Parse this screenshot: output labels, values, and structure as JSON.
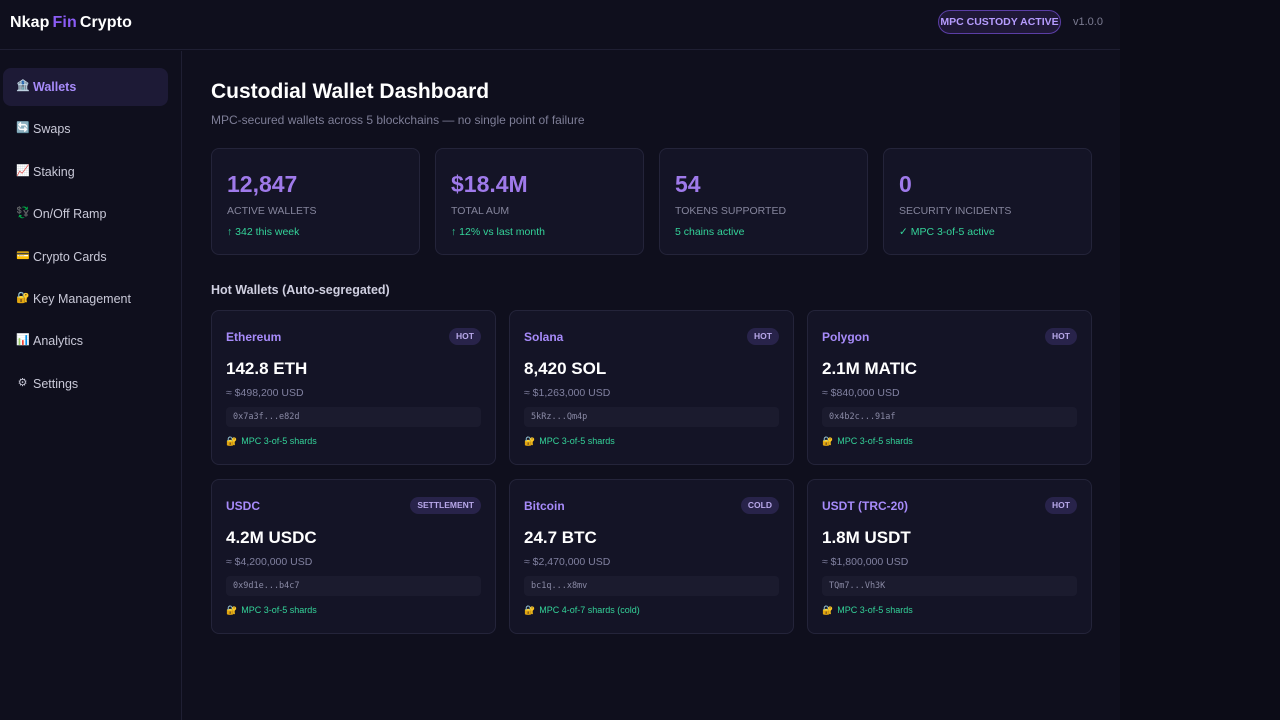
{
  "header": {
    "brand": {
      "part1": "Nkap",
      "part2": "Fin",
      "part3": "Crypto"
    },
    "badge": "MPC CUSTODY ACTIVE",
    "version": "v1.0.0"
  },
  "sidebar": {
    "items": [
      {
        "label": "Wallets",
        "icon": "🏦",
        "icon_name": "bank-icon",
        "active": true
      },
      {
        "label": "Swaps",
        "icon": "🔄",
        "icon_name": "swap-icon",
        "active": false
      },
      {
        "label": "Staking",
        "icon": "📈",
        "icon_name": "chart-up-icon",
        "active": false
      },
      {
        "label": "On/Off Ramp",
        "icon": "💱",
        "icon_name": "exchange-icon",
        "active": false
      },
      {
        "label": "Crypto Cards",
        "icon": "💳",
        "icon_name": "card-icon",
        "active": false
      },
      {
        "label": "Key Management",
        "icon": "🔐",
        "icon_name": "lock-key-icon",
        "active": false
      },
      {
        "label": "Analytics",
        "icon": "📊",
        "icon_name": "bar-chart-icon",
        "active": false
      },
      {
        "label": "Settings",
        "icon": "⚙",
        "icon_name": "gear-icon",
        "active": false
      }
    ]
  },
  "main": {
    "title": "Custodial Wallet Dashboard",
    "subtitle": "MPC-secured wallets across 5 blockchains — no single point of failure",
    "stats": [
      {
        "value": "12,847",
        "label": "ACTIVE WALLETS",
        "note": "↑ 342 this week"
      },
      {
        "value": "$18.4M",
        "label": "TOTAL AUM",
        "note": "↑ 12% vs last month"
      },
      {
        "value": "54",
        "label": "TOKENS SUPPORTED",
        "note": "5 chains active"
      },
      {
        "value": "0",
        "label": "SECURITY INCIDENTS",
        "note": "✓ MPC 3-of-5 active"
      }
    ],
    "section_title": "Hot Wallets (Auto-segregated)",
    "wallets": [
      {
        "name": "Ethereum",
        "tag": "HOT",
        "amount": "142.8 ETH",
        "usd": "≈ $498,200 USD",
        "address": "0x7a3f...e82d",
        "shards": "MPC 3-of-5 shards"
      },
      {
        "name": "Solana",
        "tag": "HOT",
        "amount": "8,420 SOL",
        "usd": "≈ $1,263,000 USD",
        "address": "5kRz...Qm4p",
        "shards": "MPC 3-of-5 shards"
      },
      {
        "name": "Polygon",
        "tag": "HOT",
        "amount": "2.1M MATIC",
        "usd": "≈ $840,000 USD",
        "address": "0x4b2c...91af",
        "shards": "MPC 3-of-5 shards"
      },
      {
        "name": "USDC",
        "tag": "SETTLEMENT",
        "amount": "4.2M USDC",
        "usd": "≈ $4,200,000 USD",
        "address": "0x9d1e...b4c7",
        "shards": "MPC 3-of-5 shards"
      },
      {
        "name": "Bitcoin",
        "tag": "COLD",
        "amount": "24.7 BTC",
        "usd": "≈ $2,470,000 USD",
        "address": "bc1q...x8mv",
        "shards": "MPC 4-of-7 shards (cold)"
      },
      {
        "name": "USDT (TRC-20)",
        "tag": "HOT",
        "amount": "1.8M USDT",
        "usd": "≈ $1,800,000 USD",
        "address": "TQm7...Vh3K",
        "shards": "MPC 3-of-5 shards"
      }
    ],
    "shard_icon": "🔐"
  },
  "colors": {
    "accent": "#8b5cf6",
    "positive": "#34d399",
    "background": "#0f0f1d",
    "card": "#141426"
  }
}
